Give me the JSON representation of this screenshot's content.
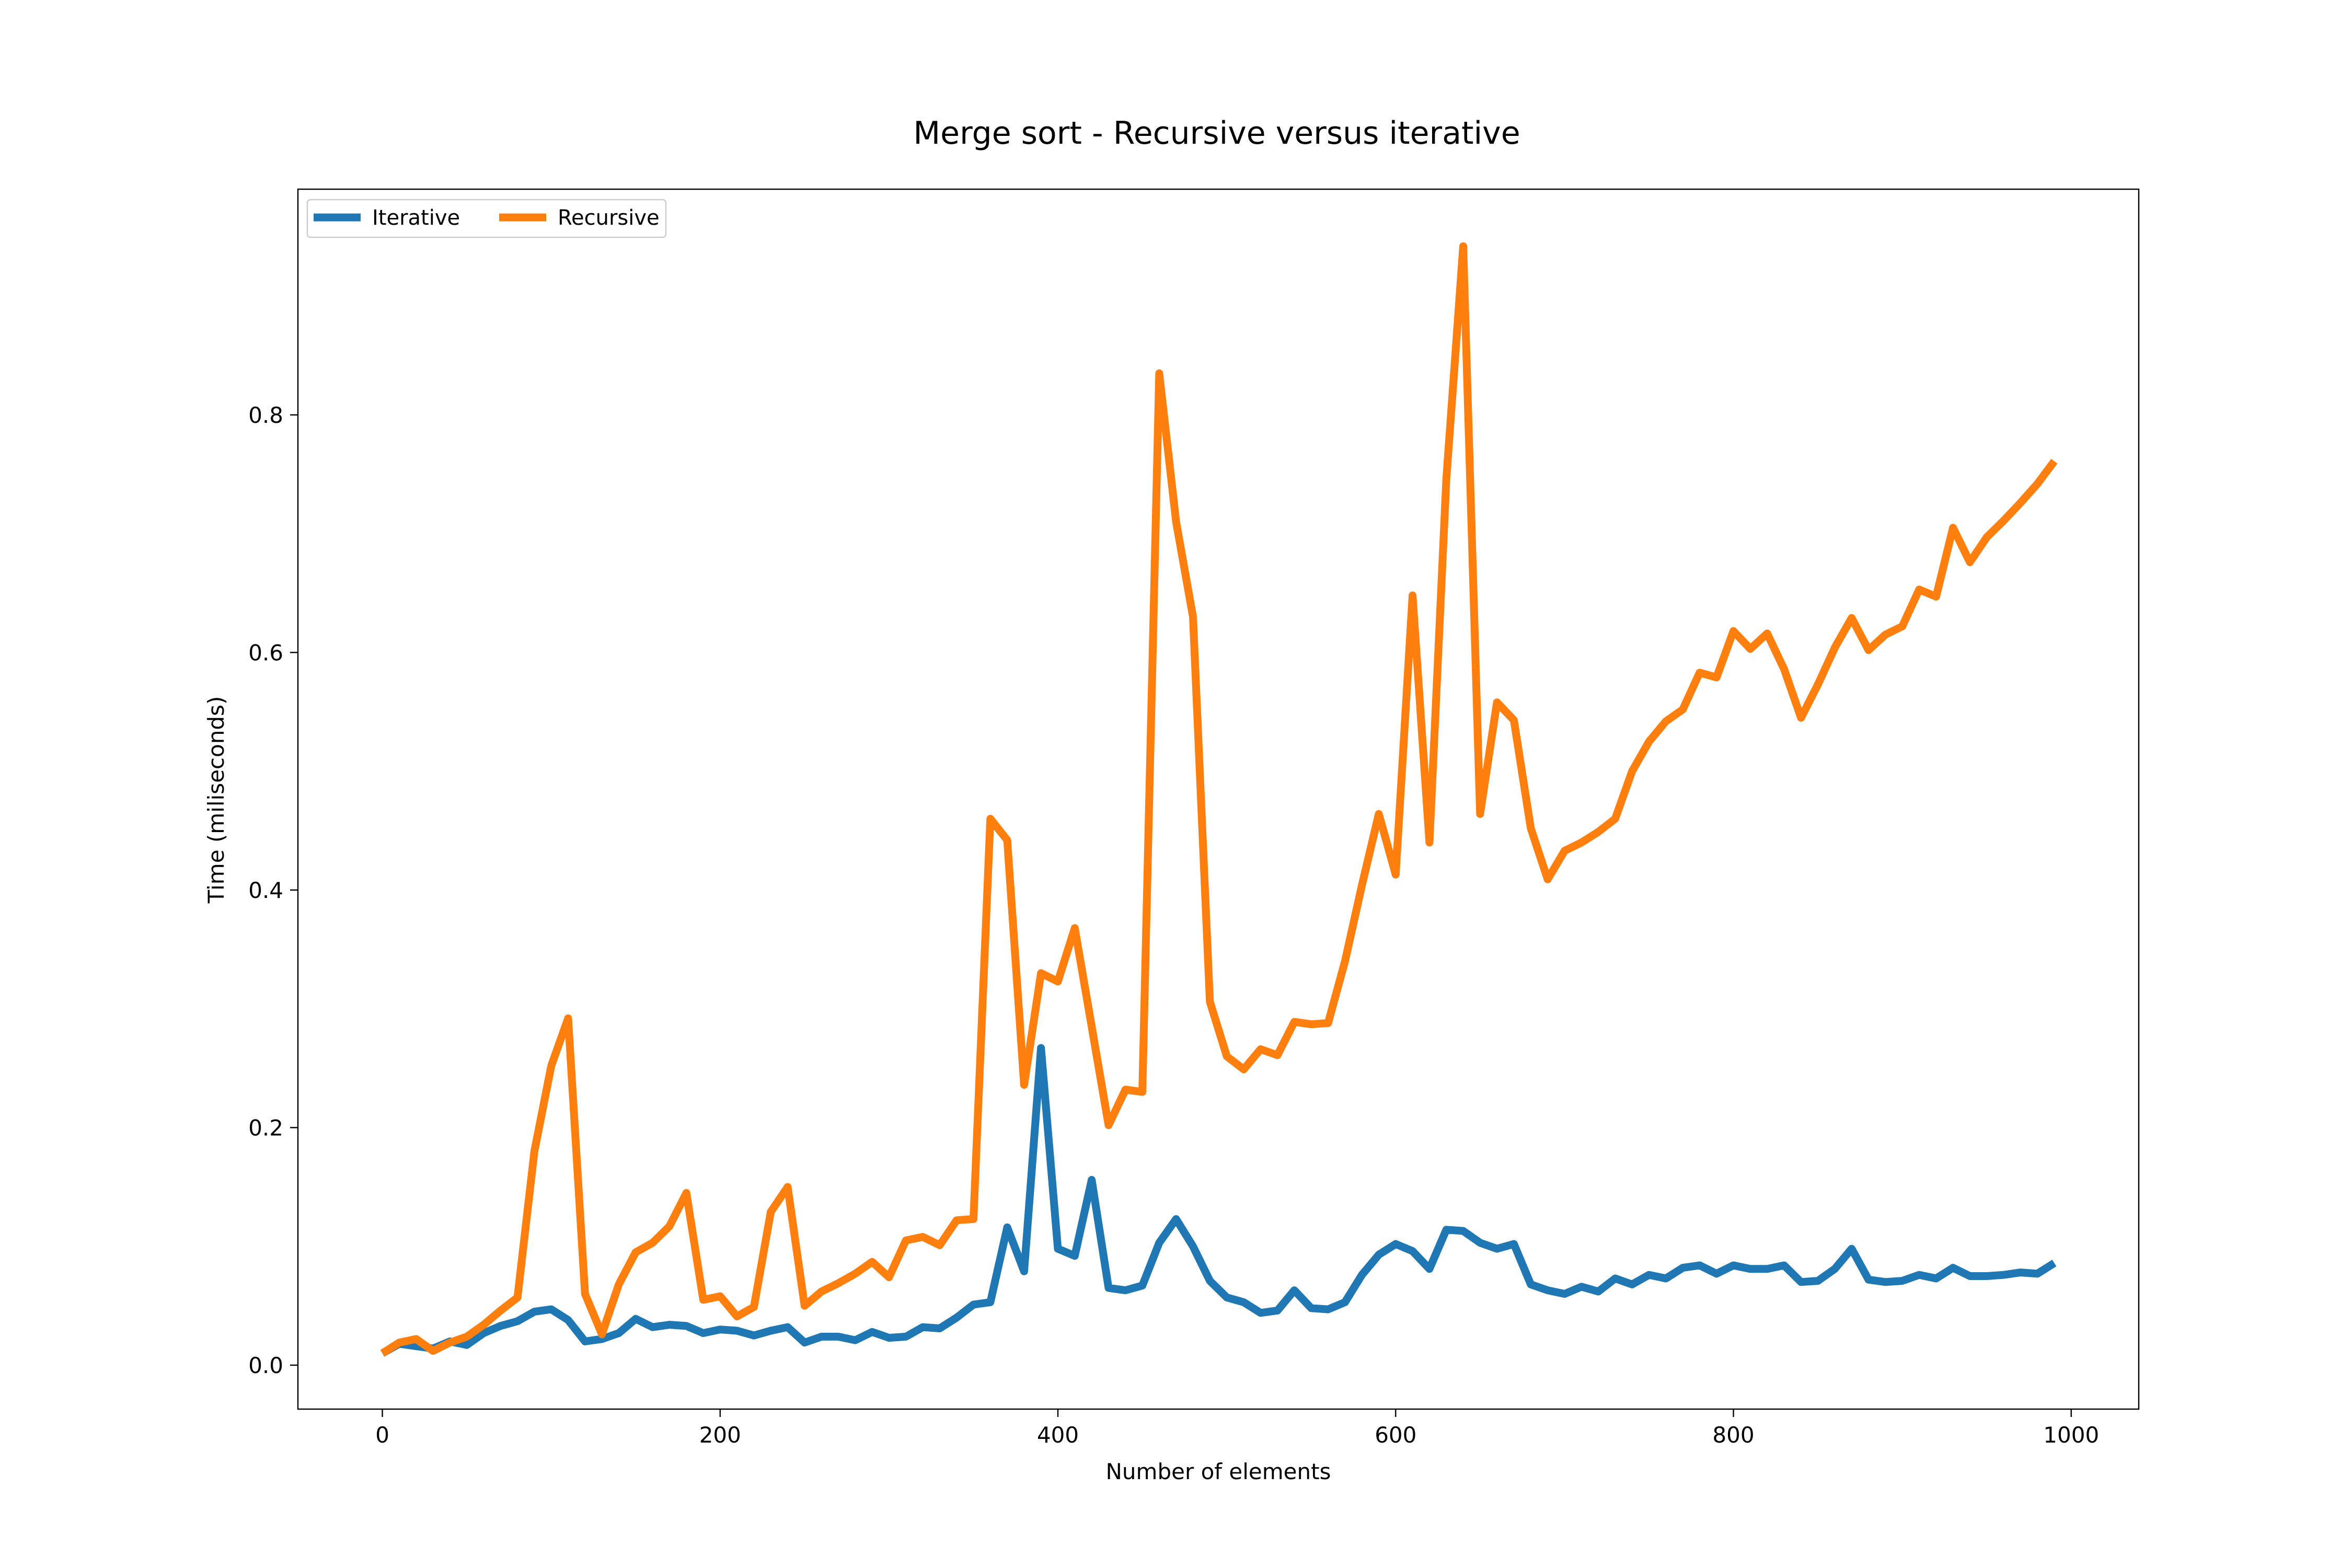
{
  "chart_data": {
    "type": "line",
    "title": "Merge sort - Recursive versus iterative",
    "xlabel": "Number of elements",
    "ylabel": "Time (miliseconds)",
    "xlim": [
      -50,
      1040
    ],
    "ylim": [
      -0.037,
      0.99
    ],
    "xticks": [
      0,
      200,
      400,
      600,
      800,
      1000
    ],
    "xtick_labels": [
      "0",
      "200",
      "400",
      "600",
      "800",
      "1000"
    ],
    "yticks": [
      0.0,
      0.2,
      0.4,
      0.6,
      0.8
    ],
    "ytick_labels": [
      "0.0",
      "0.2",
      "0.4",
      "0.6",
      "0.8"
    ],
    "grid": false,
    "legend": {
      "placement": "top-left",
      "ncol": 2
    },
    "x": [
      0,
      10,
      20,
      30,
      40,
      50,
      60,
      70,
      80,
      90,
      100,
      110,
      120,
      130,
      140,
      150,
      160,
      170,
      180,
      190,
      200,
      210,
      220,
      230,
      240,
      250,
      260,
      270,
      280,
      290,
      300,
      310,
      320,
      330,
      340,
      350,
      360,
      370,
      380,
      390,
      400,
      410,
      420,
      430,
      440,
      450,
      460,
      470,
      480,
      490,
      500,
      510,
      520,
      530,
      540,
      550,
      560,
      570,
      580,
      590,
      600,
      610,
      620,
      630,
      640,
      650,
      660,
      670,
      680,
      690,
      700,
      710,
      720,
      730,
      740,
      750,
      760,
      770,
      780,
      790,
      800,
      810,
      820,
      830,
      840,
      850,
      860,
      870,
      880,
      890,
      900,
      910,
      920,
      930,
      940,
      950,
      960,
      970,
      980,
      990
    ],
    "series": [
      {
        "name": "Iterative",
        "color": "#1f77b4",
        "values": [
          0.01,
          0.018,
          0.016,
          0.014,
          0.02,
          0.017,
          0.027,
          0.033,
          0.037,
          0.045,
          0.047,
          0.038,
          0.02,
          0.022,
          0.027,
          0.039,
          0.032,
          0.034,
          0.033,
          0.027,
          0.03,
          0.029,
          0.025,
          0.029,
          0.032,
          0.019,
          0.024,
          0.024,
          0.021,
          0.028,
          0.023,
          0.024,
          0.032,
          0.031,
          0.04,
          0.051,
          0.053,
          0.116,
          0.079,
          0.267,
          0.098,
          0.092,
          0.156,
          0.065,
          0.063,
          0.067,
          0.103,
          0.123,
          0.1,
          0.071,
          0.057,
          0.053,
          0.044,
          0.046,
          0.063,
          0.048,
          0.047,
          0.053,
          0.076,
          0.093,
          0.102,
          0.096,
          0.081,
          0.114,
          0.113,
          0.103,
          0.098,
          0.102,
          0.068,
          0.063,
          0.06,
          0.066,
          0.062,
          0.073,
          0.068,
          0.076,
          0.073,
          0.082,
          0.084,
          0.077,
          0.084,
          0.081,
          0.081,
          0.084,
          0.07,
          0.071,
          0.081,
          0.098,
          0.072,
          0.07,
          0.071,
          0.076,
          0.073,
          0.082,
          0.075,
          0.075,
          0.076,
          0.078,
          0.077,
          0.086
        ]
      },
      {
        "name": "Recursive",
        "color": "#ff7f0e",
        "values": [
          0.01,
          0.019,
          0.022,
          0.012,
          0.019,
          0.024,
          0.034,
          0.046,
          0.057,
          0.18,
          0.252,
          0.292,
          0.06,
          0.026,
          0.068,
          0.095,
          0.103,
          0.117,
          0.145,
          0.055,
          0.058,
          0.041,
          0.049,
          0.129,
          0.15,
          0.05,
          0.062,
          0.069,
          0.077,
          0.087,
          0.074,
          0.105,
          0.108,
          0.101,
          0.122,
          0.123,
          0.46,
          0.442,
          0.236,
          0.33,
          0.323,
          0.368,
          0.285,
          0.202,
          0.232,
          0.23,
          0.835,
          0.71,
          0.63,
          0.306,
          0.26,
          0.249,
          0.266,
          0.261,
          0.289,
          0.287,
          0.288,
          0.34,
          0.404,
          0.464,
          0.413,
          0.648,
          0.44,
          0.746,
          0.942,
          0.464,
          0.558,
          0.543,
          0.452,
          0.409,
          0.433,
          0.44,
          0.449,
          0.46,
          0.5,
          0.525,
          0.542,
          0.552,
          0.583,
          0.579,
          0.618,
          0.603,
          0.616,
          0.586,
          0.545,
          0.573,
          0.604,
          0.629,
          0.602,
          0.615,
          0.622,
          0.653,
          0.647,
          0.705,
          0.676,
          0.697,
          0.711,
          0.726,
          0.742,
          0.761
        ]
      }
    ]
  }
}
